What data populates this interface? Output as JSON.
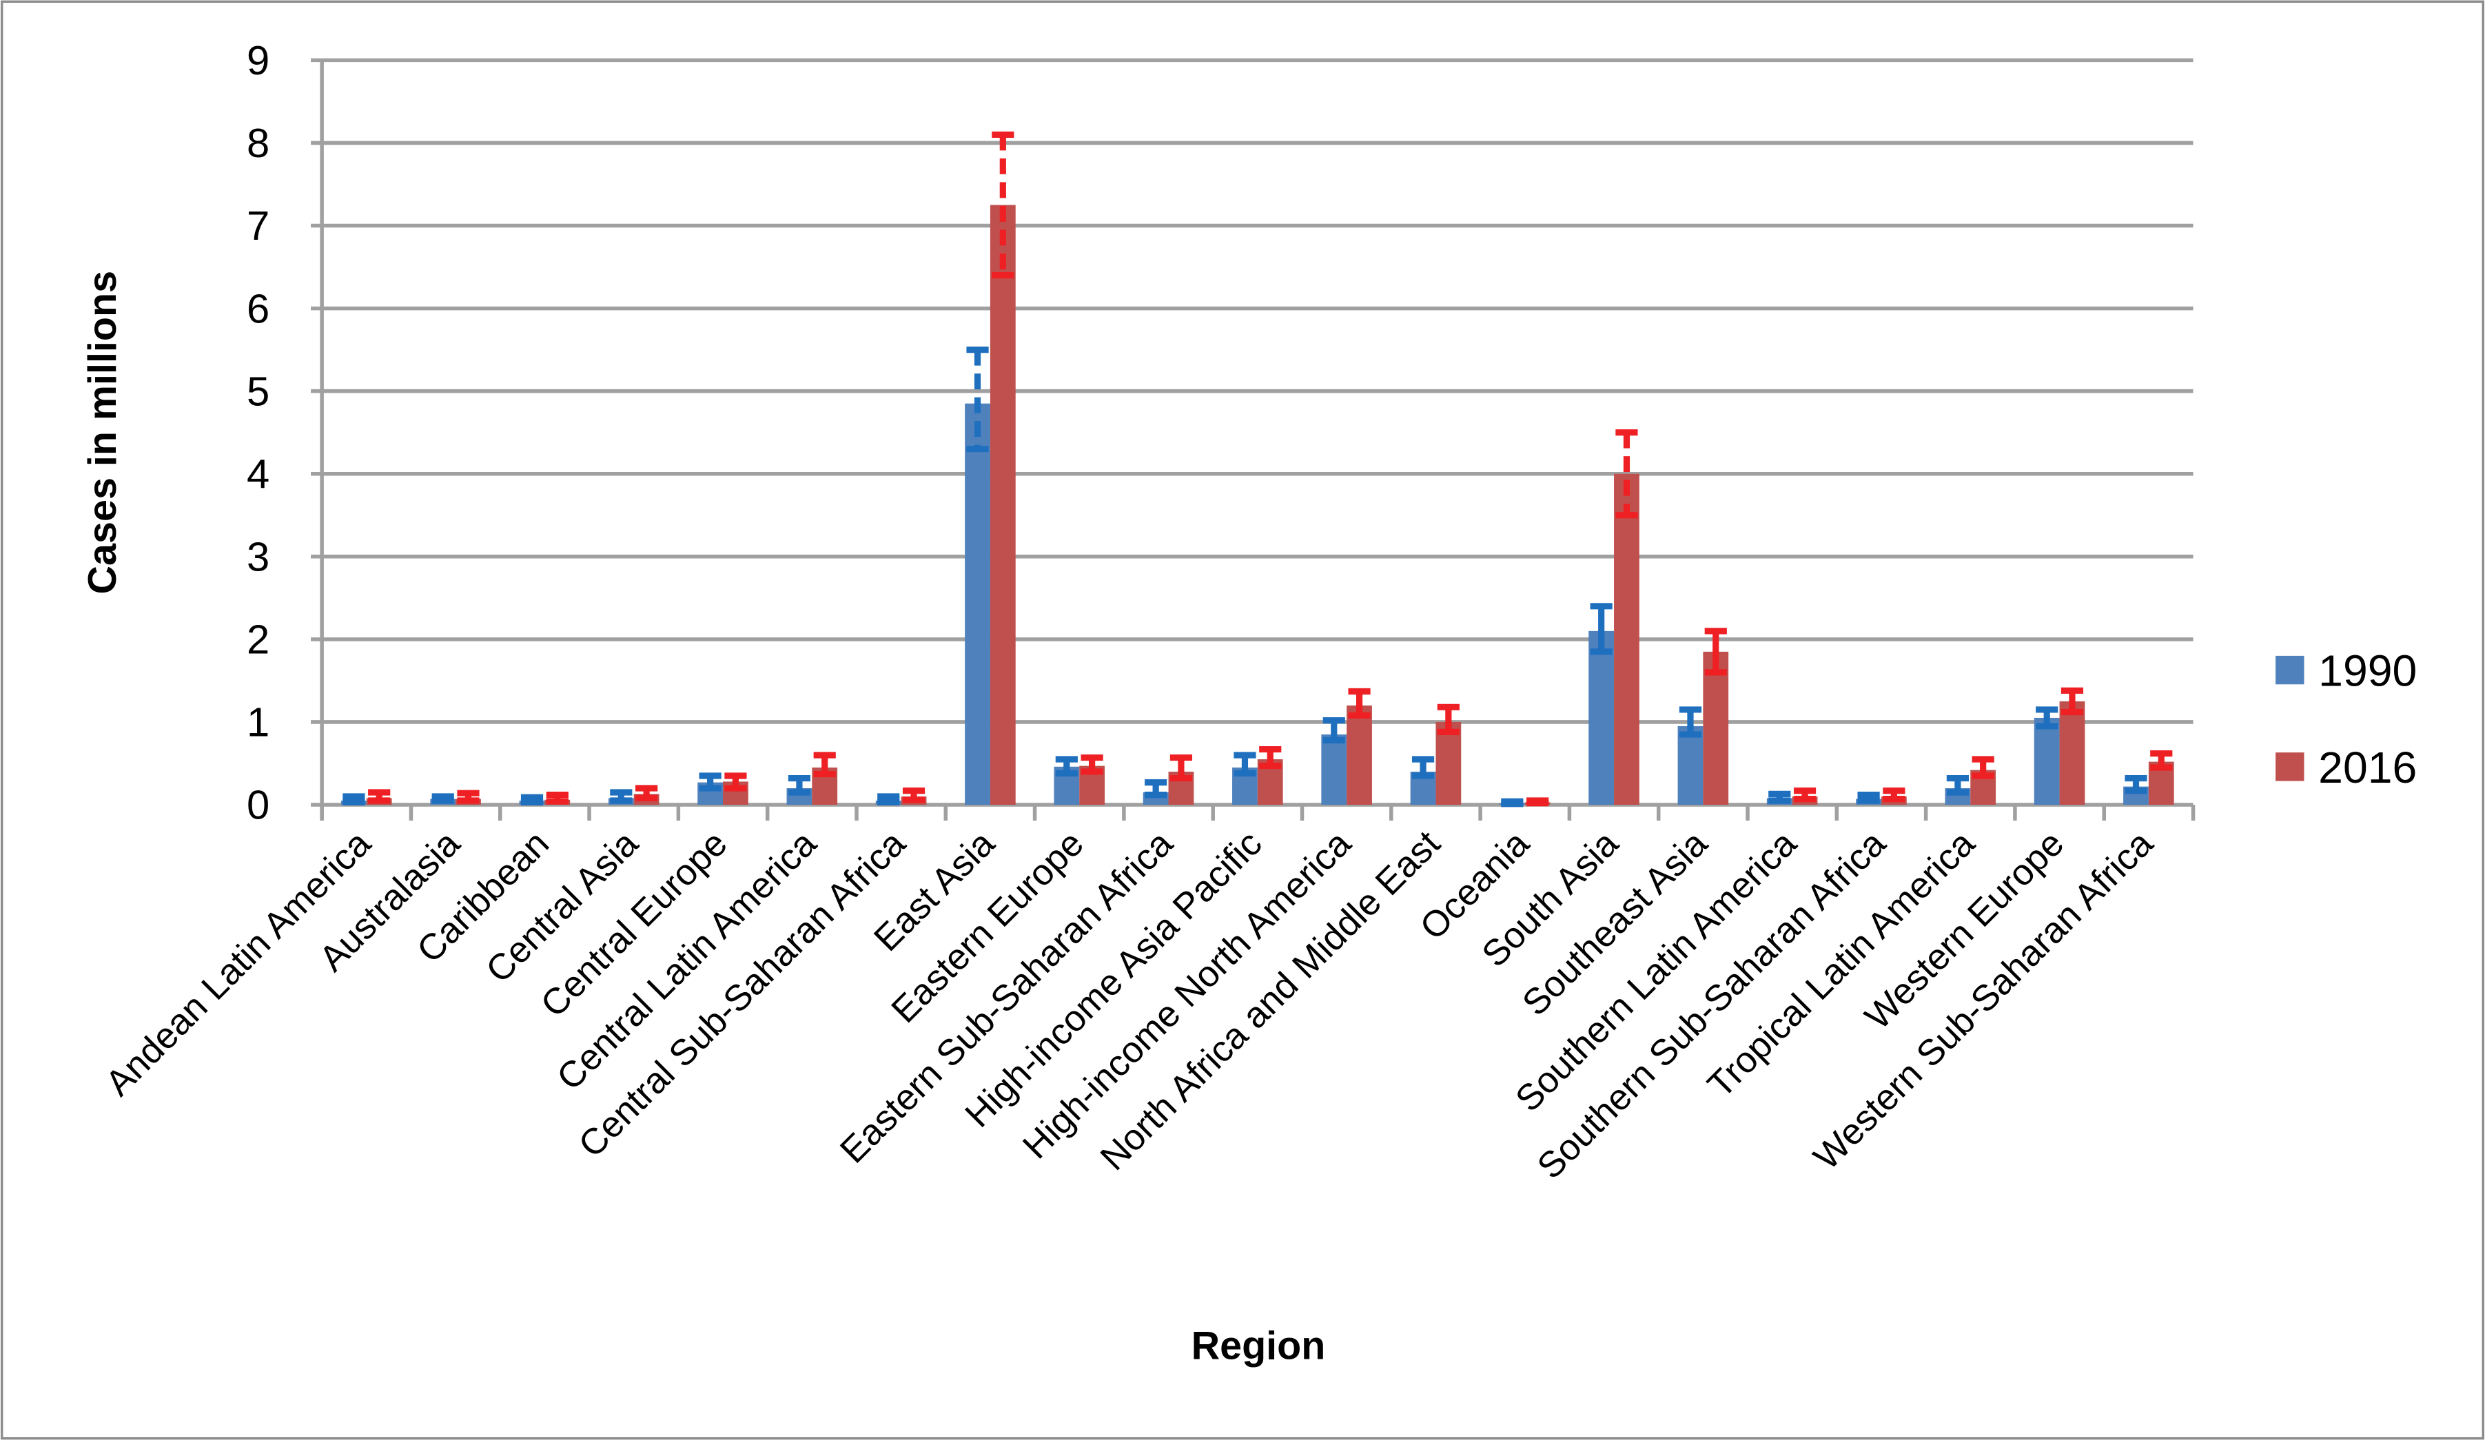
{
  "chart_data": {
    "type": "bar",
    "title": "",
    "xlabel": "Region",
    "ylabel": "Cases in millions",
    "ylim": [
      0,
      9
    ],
    "yticks": [
      "0",
      "1",
      "2",
      "3",
      "4",
      "5",
      "6",
      "7",
      "8",
      "9"
    ],
    "grid": true,
    "legend_position": "right",
    "categories": [
      "Andean Latin America",
      "Australasia",
      "Caribbean",
      "Central Asia",
      "Central Europe",
      "Central Latin America",
      "Central Sub-Saharan Africa",
      "East Asia",
      "Eastern Europe",
      "Eastern Sub-Saharan Africa",
      "High-income Asia Pacific",
      "High-income North America",
      "North Africa and Middle East",
      "Oceania",
      "South Asia",
      "Southeast Asia",
      "Southern Latin America",
      "Southern Sub-Saharan Africa",
      "Tropical Latin America",
      "Western Europe",
      "Western Sub-Saharan Africa"
    ],
    "series": [
      {
        "name": "1990",
        "color": "#4f81bd",
        "error_color": "#1f6fbf",
        "values": [
          0.05,
          0.07,
          0.05,
          0.08,
          0.27,
          0.2,
          0.05,
          4.85,
          0.46,
          0.15,
          0.45,
          0.85,
          0.4,
          0.02,
          2.1,
          0.95,
          0.08,
          0.07,
          0.2,
          1.05,
          0.22
        ],
        "lower": [
          0.03,
          0.05,
          0.03,
          0.05,
          0.2,
          0.15,
          0.03,
          4.3,
          0.38,
          0.12,
          0.38,
          0.78,
          0.35,
          0.01,
          1.85,
          0.85,
          0.05,
          0.05,
          0.15,
          0.95,
          0.17
        ],
        "upper": [
          0.1,
          0.1,
          0.09,
          0.15,
          0.35,
          0.32,
          0.1,
          5.5,
          0.55,
          0.27,
          0.6,
          1.02,
          0.55,
          0.04,
          2.4,
          1.15,
          0.13,
          0.12,
          0.32,
          1.15,
          0.32
        ]
      },
      {
        "name": "2016",
        "color": "#c0504d",
        "error_color": "#ee2024",
        "values": [
          0.08,
          0.07,
          0.06,
          0.13,
          0.28,
          0.45,
          0.1,
          7.25,
          0.47,
          0.4,
          0.55,
          1.2,
          1.0,
          0.03,
          4.0,
          1.85,
          0.1,
          0.1,
          0.42,
          1.25,
          0.52
        ],
        "lower": [
          0.05,
          0.05,
          0.04,
          0.08,
          0.2,
          0.37,
          0.06,
          6.4,
          0.4,
          0.32,
          0.47,
          1.08,
          0.88,
          0.02,
          3.5,
          1.6,
          0.07,
          0.07,
          0.35,
          1.12,
          0.45
        ],
        "upper": [
          0.15,
          0.14,
          0.12,
          0.2,
          0.35,
          0.6,
          0.17,
          8.1,
          0.57,
          0.57,
          0.67,
          1.37,
          1.18,
          0.05,
          4.5,
          2.1,
          0.17,
          0.17,
          0.55,
          1.38,
          0.62
        ]
      }
    ]
  }
}
